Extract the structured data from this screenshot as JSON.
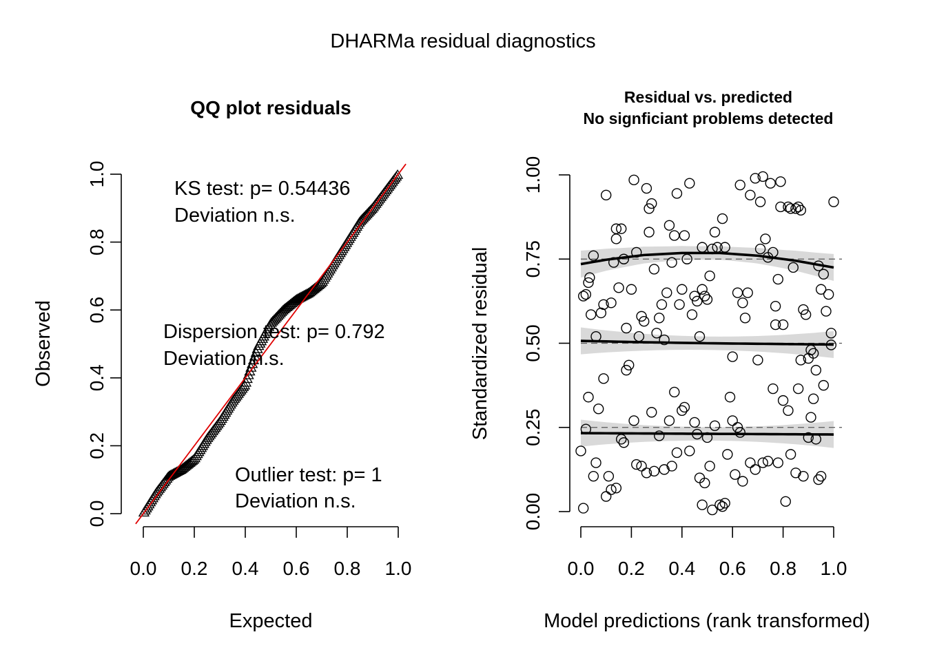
{
  "outer_title": "DHARMa residual diagnostics",
  "chart_data": [
    {
      "type": "scatter",
      "title": "QQ plot residuals",
      "xlabel": "Expected",
      "ylabel": "Observed",
      "xlim": [
        0,
        1
      ],
      "ylim": [
        0,
        1
      ],
      "xticks": [
        "0.0",
        "0.2",
        "0.4",
        "0.6",
        "0.8",
        "1.0"
      ],
      "yticks": [
        "0.0",
        "0.2",
        "0.4",
        "0.6",
        "0.8",
        "1.0"
      ],
      "marker": "triangle",
      "reference_line": {
        "color": "#e00000",
        "from": [
          0,
          0
        ],
        "to": [
          1,
          1
        ]
      },
      "annotations": [
        {
          "line1": "KS test: p= 0.54436",
          "line2": "Deviation  n.s."
        },
        {
          "line1": "Dispersion test: p= 0.792",
          "line2": "Deviation  n.s."
        },
        {
          "line1": "Outlier test: p= 1",
          "line2": "Deviation  n.s."
        }
      ],
      "quantile_curve": {
        "x": [
          0,
          0.05,
          0.1,
          0.15,
          0.2,
          0.25,
          0.3,
          0.35,
          0.4,
          0.45,
          0.5,
          0.55,
          0.6,
          0.65,
          0.7,
          0.75,
          0.8,
          0.85,
          0.9,
          0.95,
          1.0
        ],
        "y": [
          0.0,
          0.06,
          0.11,
          0.13,
          0.16,
          0.22,
          0.27,
          0.33,
          0.38,
          0.49,
          0.56,
          0.6,
          0.63,
          0.65,
          0.68,
          0.74,
          0.8,
          0.86,
          0.9,
          0.95,
          1.0
        ]
      }
    },
    {
      "type": "scatter",
      "title": "Residual vs. predicted",
      "subtitle": "No signficiant problems detected",
      "xlabel": "Model predictions (rank transformed)",
      "ylabel": "Standardized residual",
      "xlim": [
        0,
        1
      ],
      "ylim": [
        0,
        1
      ],
      "xticks": [
        "0.0",
        "0.2",
        "0.4",
        "0.6",
        "0.8",
        "1.0"
      ],
      "yticks": [
        "0.00",
        "0.25",
        "0.50",
        "0.75",
        "1.00"
      ],
      "marker": "open-circle",
      "reference_lines": [
        0.25,
        0.5,
        0.75
      ],
      "quantile_fits": [
        {
          "quantile": 0.25,
          "x": [
            0,
            0.25,
            0.5,
            0.75,
            1.0
          ],
          "y": [
            0.233,
            0.232,
            0.231,
            0.23,
            0.229
          ]
        },
        {
          "quantile": 0.5,
          "x": [
            0,
            0.25,
            0.5,
            0.75,
            1.0
          ],
          "y": [
            0.507,
            0.503,
            0.5,
            0.498,
            0.496
          ]
        },
        {
          "quantile": 0.75,
          "x": [
            0,
            0.1,
            0.25,
            0.4,
            0.55,
            0.7,
            0.85,
            1.0
          ],
          "y": [
            0.735,
            0.748,
            0.762,
            0.768,
            0.768,
            0.76,
            0.745,
            0.725
          ]
        }
      ],
      "points": [
        [
          0.01,
          0.64
        ],
        [
          0.02,
          0.645
        ],
        [
          0.03,
          0.68
        ],
        [
          0.035,
          0.695
        ],
        [
          0.04,
          0.585
        ],
        [
          0.05,
          0.76
        ],
        [
          0.06,
          0.52
        ],
        [
          0.08,
          0.59
        ],
        [
          0.09,
          0.615
        ],
        [
          0.1,
          0.94
        ],
        [
          0.12,
          0.62
        ],
        [
          0.13,
          0.74
        ],
        [
          0.14,
          0.81
        ],
        [
          0.14,
          0.84
        ],
        [
          0.15,
          0.665
        ],
        [
          0.16,
          0.84
        ],
        [
          0.17,
          0.75
        ],
        [
          0.18,
          0.545
        ],
        [
          0.2,
          0.66
        ],
        [
          0.21,
          0.985
        ],
        [
          0.22,
          0.77
        ],
        [
          0.23,
          0.52
        ],
        [
          0.24,
          0.58
        ],
        [
          0.25,
          0.565
        ],
        [
          0.26,
          0.96
        ],
        [
          0.27,
          0.9
        ],
        [
          0.27,
          0.83
        ],
        [
          0.28,
          0.915
        ],
        [
          0.29,
          0.72
        ],
        [
          0.3,
          0.53
        ],
        [
          0.31,
          0.575
        ],
        [
          0.32,
          0.615
        ],
        [
          0.33,
          0.51
        ],
        [
          0.34,
          0.65
        ],
        [
          0.35,
          0.85
        ],
        [
          0.36,
          0.74
        ],
        [
          0.37,
          0.82
        ],
        [
          0.38,
          0.945
        ],
        [
          0.39,
          0.615
        ],
        [
          0.4,
          0.66
        ],
        [
          0.41,
          0.82
        ],
        [
          0.42,
          0.75
        ],
        [
          0.43,
          0.975
        ],
        [
          0.44,
          0.585
        ],
        [
          0.45,
          0.64
        ],
        [
          0.46,
          0.625
        ],
        [
          0.47,
          0.52
        ],
        [
          0.48,
          0.66
        ],
        [
          0.48,
          0.785
        ],
        [
          0.49,
          0.64
        ],
        [
          0.5,
          0.63
        ],
        [
          0.51,
          0.7
        ],
        [
          0.52,
          0.78
        ],
        [
          0.53,
          0.83
        ],
        [
          0.54,
          0.785
        ],
        [
          0.56,
          0.87
        ],
        [
          0.57,
          0.785
        ],
        [
          0.6,
          0.46
        ],
        [
          0.62,
          0.65
        ],
        [
          0.63,
          0.97
        ],
        [
          0.64,
          0.62
        ],
        [
          0.65,
          0.575
        ],
        [
          0.66,
          0.65
        ],
        [
          0.67,
          0.94
        ],
        [
          0.69,
          0.99
        ],
        [
          0.7,
          0.45
        ],
        [
          0.71,
          0.78
        ],
        [
          0.71,
          0.92
        ],
        [
          0.72,
          0.995
        ],
        [
          0.73,
          0.81
        ],
        [
          0.74,
          0.755
        ],
        [
          0.75,
          0.975
        ],
        [
          0.76,
          0.77
        ],
        [
          0.77,
          0.555
        ],
        [
          0.77,
          0.61
        ],
        [
          0.78,
          0.69
        ],
        [
          0.79,
          0.98
        ],
        [
          0.79,
          0.905
        ],
        [
          0.8,
          0.555
        ],
        [
          0.82,
          0.905
        ],
        [
          0.83,
          0.9
        ],
        [
          0.84,
          0.725
        ],
        [
          0.85,
          0.9
        ],
        [
          0.86,
          0.905
        ],
        [
          0.87,
          0.45
        ],
        [
          0.87,
          0.895
        ],
        [
          0.88,
          0.6
        ],
        [
          0.89,
          0.585
        ],
        [
          0.9,
          0.455
        ],
        [
          0.91,
          0.48
        ],
        [
          0.92,
          0.47
        ],
        [
          0.93,
          0.42
        ],
        [
          0.94,
          0.73
        ],
        [
          0.95,
          0.66
        ],
        [
          0.96,
          0.705
        ],
        [
          0.97,
          0.595
        ],
        [
          0.98,
          0.645
        ],
        [
          0.99,
          0.495
        ],
        [
          0.99,
          0.53
        ],
        [
          1.0,
          0.92
        ],
        [
          0.0,
          0.18
        ],
        [
          0.01,
          0.01
        ],
        [
          0.02,
          0.245
        ],
        [
          0.03,
          0.34
        ],
        [
          0.05,
          0.105
        ],
        [
          0.06,
          0.145
        ],
        [
          0.07,
          0.305
        ],
        [
          0.09,
          0.395
        ],
        [
          0.1,
          0.045
        ],
        [
          0.11,
          0.105
        ],
        [
          0.12,
          0.065
        ],
        [
          0.14,
          0.07
        ],
        [
          0.16,
          0.215
        ],
        [
          0.17,
          0.205
        ],
        [
          0.18,
          0.42
        ],
        [
          0.19,
          0.435
        ],
        [
          0.21,
          0.27
        ],
        [
          0.22,
          0.14
        ],
        [
          0.24,
          0.135
        ],
        [
          0.26,
          0.115
        ],
        [
          0.28,
          0.295
        ],
        [
          0.29,
          0.12
        ],
        [
          0.31,
          0.225
        ],
        [
          0.33,
          0.125
        ],
        [
          0.35,
          0.27
        ],
        [
          0.36,
          0.135
        ],
        [
          0.37,
          0.355
        ],
        [
          0.38,
          0.175
        ],
        [
          0.4,
          0.3
        ],
        [
          0.41,
          0.31
        ],
        [
          0.43,
          0.18
        ],
        [
          0.45,
          0.265
        ],
        [
          0.46,
          0.23
        ],
        [
          0.47,
          0.1
        ],
        [
          0.48,
          0.02
        ],
        [
          0.49,
          0.085
        ],
        [
          0.5,
          0.22
        ],
        [
          0.51,
          0.135
        ],
        [
          0.52,
          0.005
        ],
        [
          0.53,
          0.255
        ],
        [
          0.55,
          0.02
        ],
        [
          0.56,
          0.015
        ],
        [
          0.57,
          0.025
        ],
        [
          0.58,
          0.17
        ],
        [
          0.59,
          0.34
        ],
        [
          0.6,
          0.27
        ],
        [
          0.61,
          0.11
        ],
        [
          0.62,
          0.25
        ],
        [
          0.63,
          0.235
        ],
        [
          0.64,
          0.09
        ],
        [
          0.67,
          0.145
        ],
        [
          0.69,
          0.125
        ],
        [
          0.72,
          0.145
        ],
        [
          0.74,
          0.15
        ],
        [
          0.76,
          0.365
        ],
        [
          0.78,
          0.145
        ],
        [
          0.8,
          0.33
        ],
        [
          0.81,
          0.03
        ],
        [
          0.82,
          0.3
        ],
        [
          0.83,
          0.17
        ],
        [
          0.85,
          0.115
        ],
        [
          0.86,
          0.365
        ],
        [
          0.88,
          0.105
        ],
        [
          0.9,
          0.22
        ],
        [
          0.91,
          0.28
        ],
        [
          0.92,
          0.335
        ],
        [
          0.94,
          0.095
        ],
        [
          0.95,
          0.105
        ],
        [
          0.96,
          0.375
        ],
        [
          0.93,
          0.215
        ]
      ]
    }
  ]
}
